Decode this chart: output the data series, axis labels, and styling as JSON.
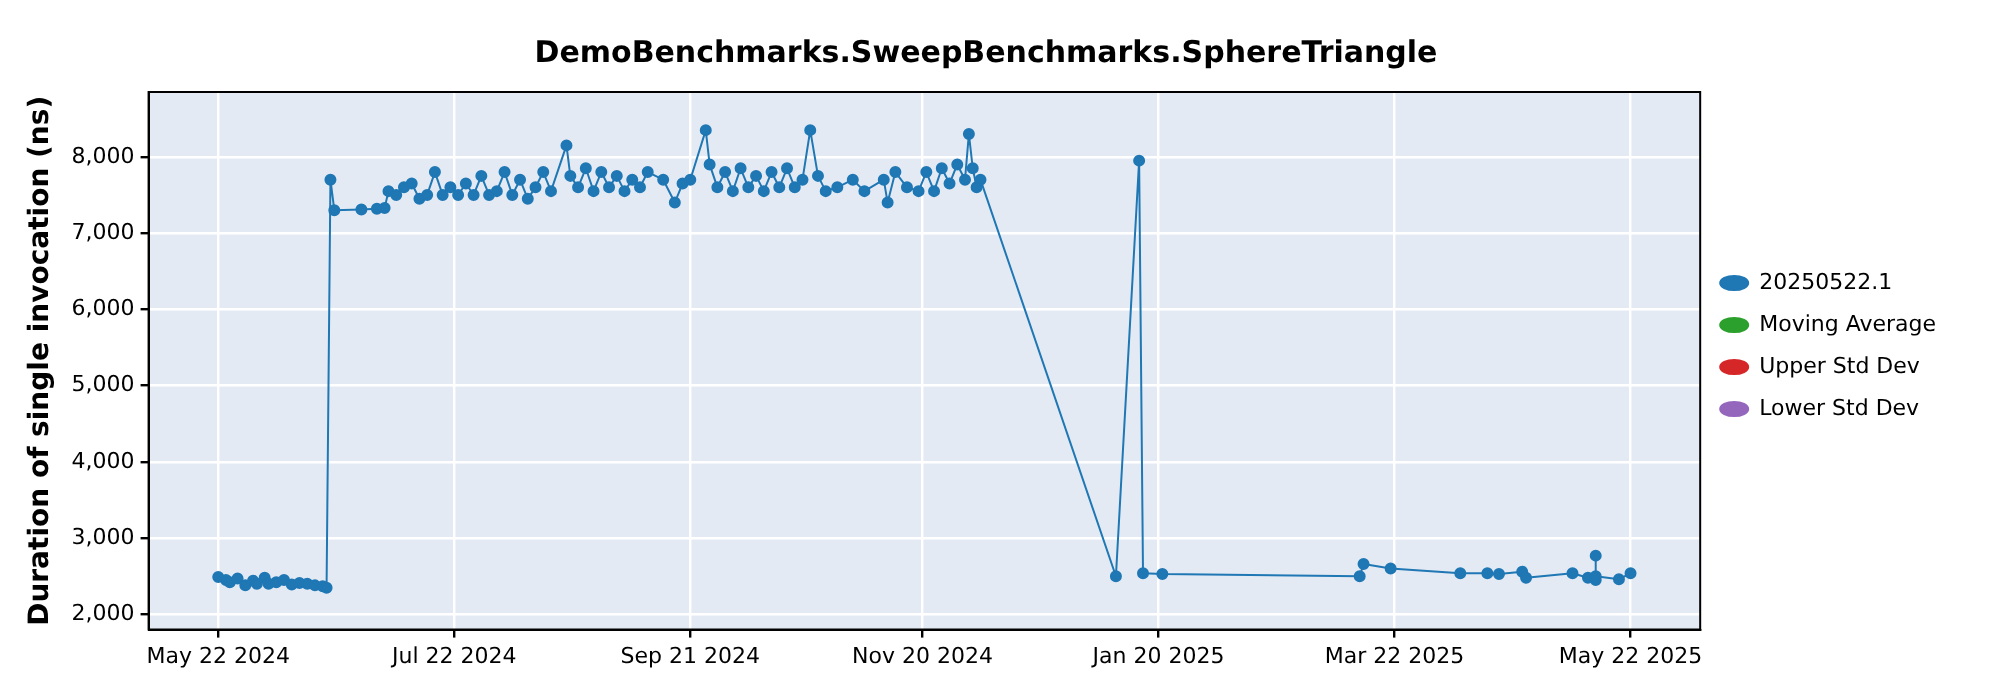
{
  "chart_data": {
    "type": "line",
    "title": "DemoBenchmarks.SweepBenchmarks.SphereTriangle",
    "ylabel": "Duration of single invocation (ns)",
    "xlim": [
      "2024-05-04",
      "2025-06-09"
    ],
    "xticks": [
      {
        "value": "2024-05-22",
        "label": "May 22 2024"
      },
      {
        "value": "2024-07-22",
        "label": "Jul 22 2024"
      },
      {
        "value": "2024-09-21",
        "label": "Sep 21 2024"
      },
      {
        "value": "2024-11-20",
        "label": "Nov 20 2024"
      },
      {
        "value": "2025-01-20",
        "label": "Jan 20 2025"
      },
      {
        "value": "2025-03-22",
        "label": "Mar 22 2025"
      },
      {
        "value": "2025-05-22",
        "label": "May 22 2025"
      }
    ],
    "ylim": [
      1800,
      8850
    ],
    "yticks": [
      {
        "value": 2000,
        "label": "2,000"
      },
      {
        "value": 3000,
        "label": "3,000"
      },
      {
        "value": 4000,
        "label": "4,000"
      },
      {
        "value": 5000,
        "label": "5,000"
      },
      {
        "value": 6000,
        "label": "6,000"
      },
      {
        "value": 7000,
        "label": "7,000"
      },
      {
        "value": 8000,
        "label": "8,000"
      }
    ],
    "grid": true,
    "legend": "right",
    "marker": "circle",
    "line_style": "solid",
    "series": [
      {
        "name": "20250522.1",
        "color": "#1f77b4",
        "x": [
          "2024-05-22",
          "2024-05-24",
          "2024-05-25",
          "2024-05-27",
          "2024-05-29",
          "2024-05-31",
          "2024-06-01",
          "2024-06-03",
          "2024-06-04",
          "2024-06-06",
          "2024-06-08",
          "2024-06-10",
          "2024-06-12",
          "2024-06-14",
          "2024-06-16",
          "2024-06-18",
          "2024-06-19",
          "2024-06-20",
          "2024-06-21",
          "2024-06-28",
          "2024-07-02",
          "2024-07-04",
          "2024-07-05",
          "2024-07-07",
          "2024-07-09",
          "2024-07-11",
          "2024-07-13",
          "2024-07-15",
          "2024-07-17",
          "2024-07-19",
          "2024-07-21",
          "2024-07-23",
          "2024-07-25",
          "2024-07-27",
          "2024-07-29",
          "2024-07-31",
          "2024-08-02",
          "2024-08-04",
          "2024-08-06",
          "2024-08-08",
          "2024-08-10",
          "2024-08-12",
          "2024-08-14",
          "2024-08-16",
          "2024-08-20",
          "2024-08-21",
          "2024-08-23",
          "2024-08-25",
          "2024-08-27",
          "2024-08-29",
          "2024-08-31",
          "2024-09-02",
          "2024-09-04",
          "2024-09-06",
          "2024-09-08",
          "2024-09-10",
          "2024-09-14",
          "2024-09-17",
          "2024-09-19",
          "2024-09-21",
          "2024-09-25",
          "2024-09-26",
          "2024-09-28",
          "2024-09-30",
          "2024-10-02",
          "2024-10-04",
          "2024-10-06",
          "2024-10-08",
          "2024-10-10",
          "2024-10-12",
          "2024-10-14",
          "2024-10-16",
          "2024-10-18",
          "2024-10-20",
          "2024-10-22",
          "2024-10-24",
          "2024-10-26",
          "2024-10-29",
          "2024-11-02",
          "2024-11-05",
          "2024-11-10",
          "2024-11-11",
          "2024-11-13",
          "2024-11-16",
          "2024-11-19",
          "2024-11-21",
          "2024-11-23",
          "2024-11-25",
          "2024-11-27",
          "2024-11-29",
          "2024-12-01",
          "2024-12-02",
          "2024-12-03",
          "2024-12-04",
          "2024-12-05",
          "2025-01-09",
          "2025-01-15",
          "2025-01-16",
          "2025-01-21",
          "2025-03-13",
          "2025-03-14",
          "2025-03-21",
          "2025-04-08",
          "2025-04-15",
          "2025-04-18",
          "2025-04-24",
          "2025-04-25",
          "2025-05-07",
          "2025-05-11",
          "2025-05-13",
          "2025-05-13",
          "2025-05-13",
          "2025-05-19",
          "2025-05-22"
        ],
        "values": [
          2490,
          2450,
          2420,
          2470,
          2380,
          2440,
          2400,
          2480,
          2400,
          2420,
          2450,
          2390,
          2410,
          2400,
          2380,
          2370,
          2350,
          7700,
          7300,
          7310,
          7320,
          7330,
          7550,
          7500,
          7600,
          7650,
          7450,
          7500,
          7800,
          7500,
          7600,
          7500,
          7650,
          7500,
          7750,
          7500,
          7550,
          7800,
          7500,
          7700,
          7450,
          7600,
          7800,
          7550,
          8150,
          7750,
          7600,
          7850,
          7550,
          7800,
          7600,
          7750,
          7550,
          7700,
          7600,
          7800,
          7700,
          7400,
          7650,
          7700,
          8350,
          7900,
          7600,
          7800,
          7550,
          7850,
          7600,
          7750,
          7550,
          7800,
          7600,
          7850,
          7600,
          7700,
          8350,
          7750,
          7550,
          7600,
          7700,
          7550,
          7700,
          7400,
          7800,
          7600,
          7550,
          7800,
          7550,
          7850,
          7650,
          7900,
          7700,
          8300,
          7850,
          7600,
          7700,
          2500,
          7950,
          2540,
          2530,
          2500,
          2660,
          2600,
          2540,
          2540,
          2530,
          2560,
          2480,
          2540,
          2480,
          2450,
          2770,
          2500,
          2460,
          2540
        ]
      },
      {
        "name": "Moving Average",
        "color": "#2ca02c"
      },
      {
        "name": "Upper Std Dev",
        "color": "#d62728"
      },
      {
        "name": "Lower Std Dev",
        "color": "#9467bd"
      }
    ]
  }
}
